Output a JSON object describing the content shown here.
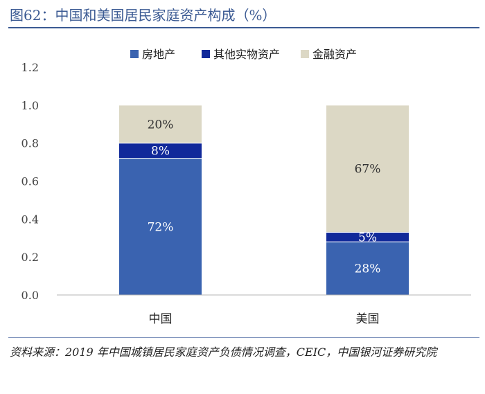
{
  "title": "图62：中国和美国居民家庭资产构成（%）",
  "source": "资料来源：2019 年中国城镇居民家庭资产负债情况调查，CEIC，中国银河证券研究院",
  "chart_data": {
    "type": "bar",
    "stacked": true,
    "categories": [
      "中国",
      "美国"
    ],
    "series": [
      {
        "name": "房地产",
        "values": [
          0.72,
          0.28
        ],
        "labels": [
          "72%",
          "28%"
        ],
        "color": "#3a63b0"
      },
      {
        "name": "其他实物资产",
        "values": [
          0.08,
          0.05
        ],
        "labels": [
          "8%",
          "5%"
        ],
        "color": "#11299a"
      },
      {
        "name": "金融资产",
        "values": [
          0.2,
          0.67
        ],
        "labels": [
          "20%",
          "67%"
        ],
        "color": "#dcd8c5"
      }
    ],
    "ylim": [
      0,
      1.2
    ],
    "yticks": [
      "0.0",
      "0.2",
      "0.4",
      "0.6",
      "0.8",
      "1.0",
      "1.2"
    ],
    "grid": false,
    "legend_position": "top-center",
    "label_colors": {
      "房地产": "#ffffff",
      "其他实物资产": "#ffffff",
      "金融资产": "#333333"
    }
  }
}
